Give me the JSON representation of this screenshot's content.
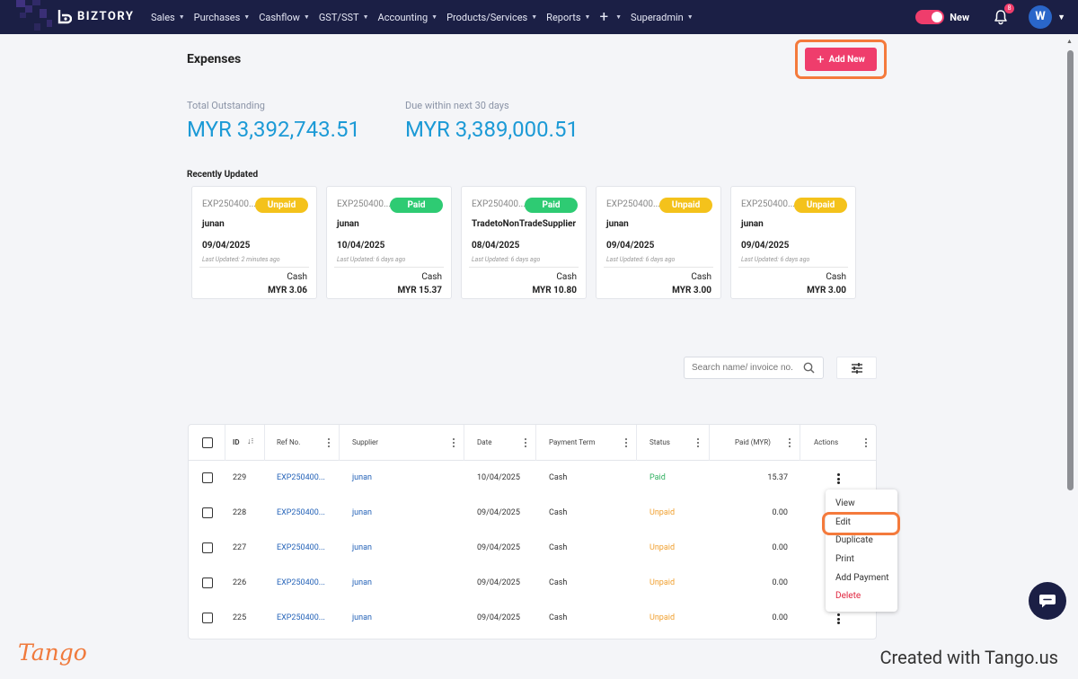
{
  "app": {
    "brand": "BIZTORY"
  },
  "nav": {
    "items": [
      "Sales",
      "Purchases",
      "Cashflow",
      "GST/SST",
      "Accounting",
      "Products/Services",
      "Reports"
    ],
    "superadmin": "Superadmin"
  },
  "topbar": {
    "toggle_label": "New",
    "notification_count": "8",
    "avatar_initial": "W"
  },
  "page": {
    "title": "Expenses",
    "add_new_label": "Add New"
  },
  "stats": {
    "outstanding_label": "Total Outstanding",
    "outstanding_value": "MYR 3,392,743.51",
    "due_label": "Due within next 30 days",
    "due_value": "MYR 3,389,000.51"
  },
  "recent": {
    "title": "Recently Updated",
    "cards": [
      {
        "id": "EXP250400...",
        "status": "Unpaid",
        "name": "junan",
        "date": "09/04/2025",
        "updated": "Last Updated: 2 minutes ago",
        "term": "Cash",
        "amount": "MYR 3.06"
      },
      {
        "id": "EXP250400...",
        "status": "Paid",
        "name": "junan",
        "date": "10/04/2025",
        "updated": "Last Updated: 6 days ago",
        "term": "Cash",
        "amount": "MYR 15.37"
      },
      {
        "id": "EXP250400...",
        "status": "Paid",
        "name": "TradetoNonTradeSupplier",
        "date": "08/04/2025",
        "updated": "Last Updated: 6 days ago",
        "term": "Cash",
        "amount": "MYR 10.80"
      },
      {
        "id": "EXP250400...",
        "status": "Unpaid",
        "name": "junan",
        "date": "09/04/2025",
        "updated": "Last Updated: 6 days ago",
        "term": "Cash",
        "amount": "MYR 3.00"
      },
      {
        "id": "EXP250400...",
        "status": "Unpaid",
        "name": "junan",
        "date": "09/04/2025",
        "updated": "Last Updated: 6 days ago",
        "term": "Cash",
        "amount": "MYR 3.00"
      }
    ]
  },
  "search": {
    "placeholder": "Search name/ invoice no."
  },
  "table": {
    "headers": {
      "id": "ID",
      "ref": "Ref No.",
      "supplier": "Supplier",
      "date": "Date",
      "term": "Payment Term",
      "status": "Status",
      "paid": "Paid (MYR)",
      "actions": "Actions"
    },
    "rows": [
      {
        "id": "229",
        "ref": "EXP250400...",
        "supplier": "junan",
        "date": "10/04/2025",
        "term": "Cash",
        "status": "Paid",
        "paid": "15.37"
      },
      {
        "id": "228",
        "ref": "EXP250400...",
        "supplier": "junan",
        "date": "09/04/2025",
        "term": "Cash",
        "status": "Unpaid",
        "paid": "0.00"
      },
      {
        "id": "227",
        "ref": "EXP250400...",
        "supplier": "junan",
        "date": "09/04/2025",
        "term": "Cash",
        "status": "Unpaid",
        "paid": "0.00"
      },
      {
        "id": "226",
        "ref": "EXP250400...",
        "supplier": "junan",
        "date": "09/04/2025",
        "term": "Cash",
        "status": "Unpaid",
        "paid": "0.00"
      },
      {
        "id": "225",
        "ref": "EXP250400...",
        "supplier": "junan",
        "date": "09/04/2025",
        "term": "Cash",
        "status": "Unpaid",
        "paid": "0.00"
      }
    ]
  },
  "action_menu": {
    "view": "View",
    "edit": "Edit",
    "duplicate": "Duplicate",
    "print": "Print",
    "add_payment": "Add Payment",
    "delete": "Delete"
  },
  "footer": {
    "logo": "Tango",
    "credit": "Created with Tango.us"
  },
  "colors": {
    "topbar": "#1b1f45",
    "accent": "#ef3d6c",
    "amount": "#1c9ad6",
    "paid": "#2ecb73",
    "unpaid": "#f4c21b",
    "highlight": "#f47a3c"
  }
}
